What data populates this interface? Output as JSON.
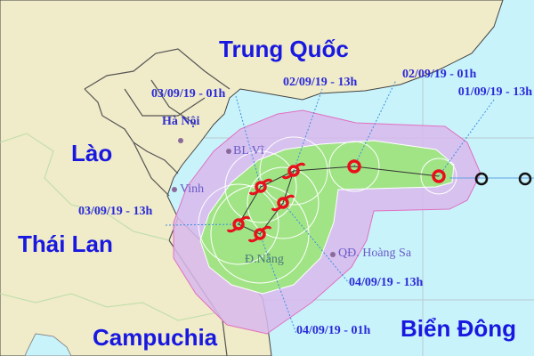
{
  "map": {
    "countries": [
      "Trung Quốc",
      "Lào",
      "Thái Lan",
      "Campuchia",
      "Biển Đông"
    ],
    "cities": [
      "Hà Nội",
      "BL Vĩ",
      "Vinh",
      "Đ.Nẵng",
      "QĐ. Hoàng Sa"
    ],
    "forecast_times": [
      "01/09/19 - 13h",
      "02/09/19 - 01h",
      "02/09/19 - 13h",
      "03/09/19 - 01h",
      "03/09/19 - 13h",
      "04/09/19 - 01h",
      "04/09/19 - 13h"
    ],
    "colors": {
      "sea": "#c9f3fb",
      "land": "#f0ebc8",
      "risk_zone": "#d9b8ec",
      "strong_wind_zone": "#9be87a",
      "storm_icon": "#e8101c",
      "label": "#1818e0"
    },
    "icons": [
      "storm-icon",
      "past-position-icon",
      "city-dot-icon"
    ]
  }
}
